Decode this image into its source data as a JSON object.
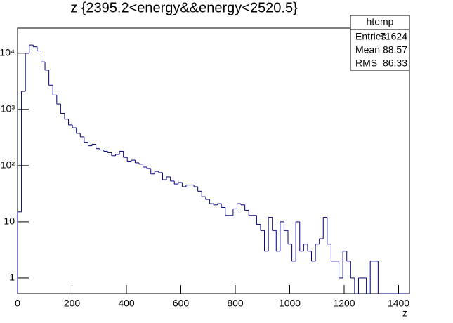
{
  "chart_data": {
    "type": "histogram",
    "title": "z {2395.2<energy&&energy<2520.5}",
    "x_label": "z",
    "color": "#000080",
    "log_y": true,
    "xlim": [
      0,
      1440
    ],
    "xticks": [
      0,
      200,
      400,
      600,
      800,
      1000,
      1200,
      1400
    ],
    "ylim": [
      0.53,
      28000
    ],
    "yticks": [
      1,
      10,
      {
        "value": 100,
        "label": "10²"
      },
      {
        "value": 1000,
        "label": "10³"
      },
      {
        "value": 10000,
        "label": "10⁴"
      }
    ],
    "bins": [
      0,
      14.4,
      28.8,
      43.2,
      57.6,
      72,
      86.4,
      100.8,
      115.2,
      129.6,
      144,
      158.4,
      172.8,
      187.2,
      201.6,
      216,
      230.4,
      244.8,
      259.2,
      273.6,
      288,
      302.4,
      316.8,
      331.2,
      345.6,
      360,
      374.4,
      388.8,
      403.2,
      417.6,
      432,
      446.4,
      460.8,
      475.2,
      489.6,
      504,
      518.4,
      532.8,
      547.2,
      561.6,
      576,
      590.4,
      604.8,
      619.2,
      633.6,
      648,
      662.4,
      676.8,
      691.2,
      705.6,
      720,
      734.4,
      748.8,
      763.2,
      777.6,
      792,
      806.4,
      820.8,
      835.2,
      849.6,
      864,
      878.4,
      892.8,
      907.2,
      921.6,
      936,
      950.4,
      964.8,
      979.2,
      993.6,
      1008,
      1022.4,
      1036.8,
      1051.2,
      1065.6,
      1080,
      1094.4,
      1108.8,
      1123.2,
      1137.6,
      1152,
      1166.4,
      1180.8,
      1195.2,
      1209.6,
      1224,
      1238.4,
      1252.8,
      1267.2,
      1281.6,
      1296,
      1310.4,
      1324.8,
      1339.2,
      1353.6,
      1368,
      1382.4,
      1396.8,
      1411.2,
      1425.6,
      1440
    ],
    "values": [
      15,
      2100,
      10000,
      14000,
      13000,
      11000,
      7000,
      5000,
      2700,
      1800,
      1250,
      850,
      670,
      530,
      470,
      375,
      325,
      260,
      225,
      240,
      200,
      190,
      180,
      170,
      150,
      158,
      180,
      140,
      120,
      125,
      112,
      106,
      94,
      89,
      71,
      79,
      75,
      56,
      63,
      53,
      47,
      50,
      42,
      45,
      45,
      42,
      35,
      28,
      25,
      21,
      20,
      21,
      18,
      13,
      13,
      17,
      21,
      20,
      16,
      13,
      13,
      9,
      7,
      3,
      12,
      7,
      3,
      10,
      7,
      4,
      2,
      10,
      3,
      4,
      3,
      2,
      4,
      5,
      12,
      4,
      2,
      2,
      1,
      3,
      2,
      1,
      0,
      1,
      1,
      0,
      2,
      2,
      0,
      0,
      0,
      0,
      0,
      0,
      0,
      0
    ],
    "stats": {
      "title": "htemp",
      "labels": [
        "Entries",
        "Mean",
        "RMS"
      ],
      "values": [
        71624,
        88.57,
        86.33
      ]
    }
  }
}
